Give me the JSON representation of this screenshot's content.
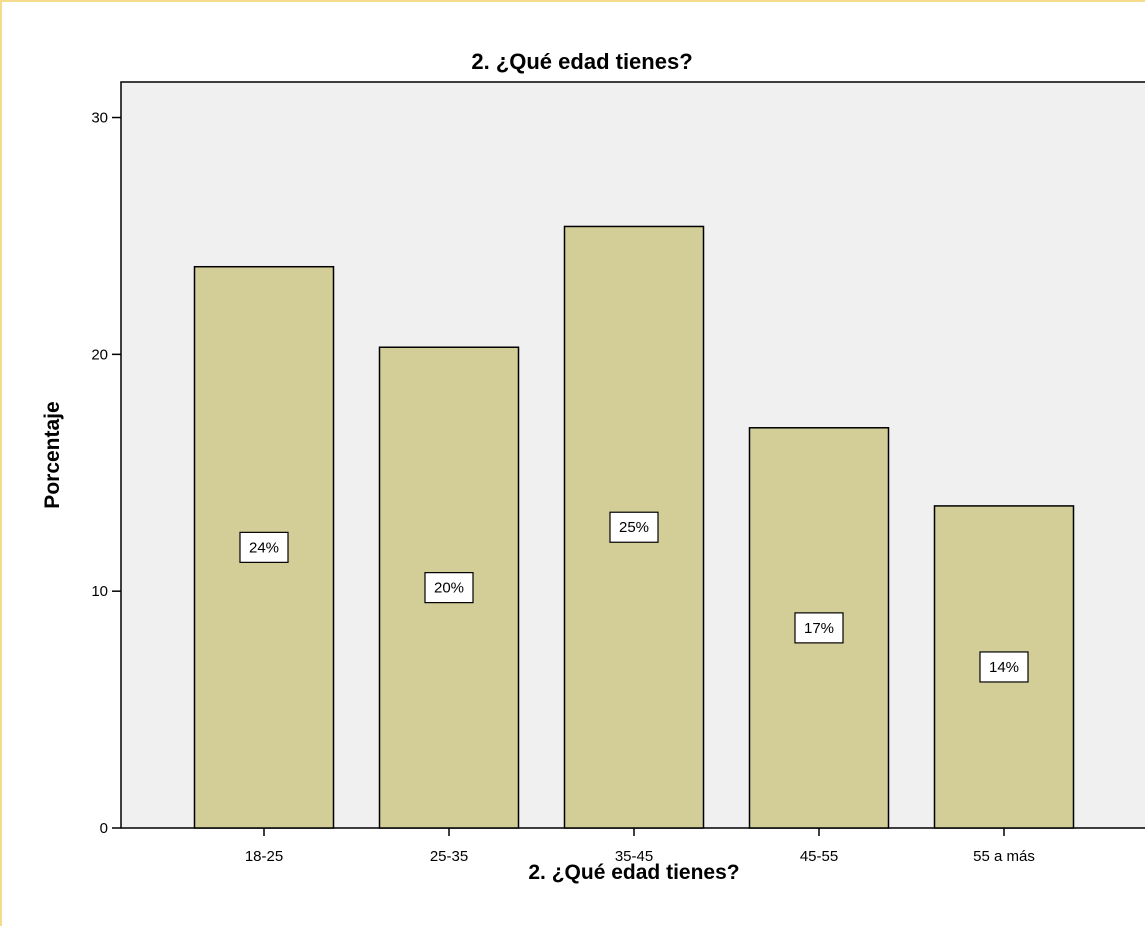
{
  "chart_data": {
    "type": "bar",
    "title": "2. ¿Qué edad  tienes?",
    "xlabel": "2. ¿Qué edad  tienes?",
    "ylabel": "Porcentaje",
    "categories": [
      "18-25",
      "25-35",
      "35-45",
      "45-55",
      "55 a más"
    ],
    "values": [
      23.7,
      20.3,
      25.4,
      16.9,
      13.6
    ],
    "data_labels": [
      "24%",
      "20%",
      "25%",
      "17%",
      "14%"
    ],
    "ylim": [
      0,
      31.5
    ],
    "yticks": [
      0,
      10,
      20,
      30
    ],
    "ytick_labels": [
      "0",
      "10",
      "20",
      "30"
    ],
    "grid": false,
    "legend": "none",
    "colors": {
      "bar_fill": "#d3ce98",
      "bar_stroke": "#000000",
      "plot_background": "#f0f0f0",
      "frame_border": "#f5dc8c",
      "label_box_fill": "#ffffff"
    }
  }
}
